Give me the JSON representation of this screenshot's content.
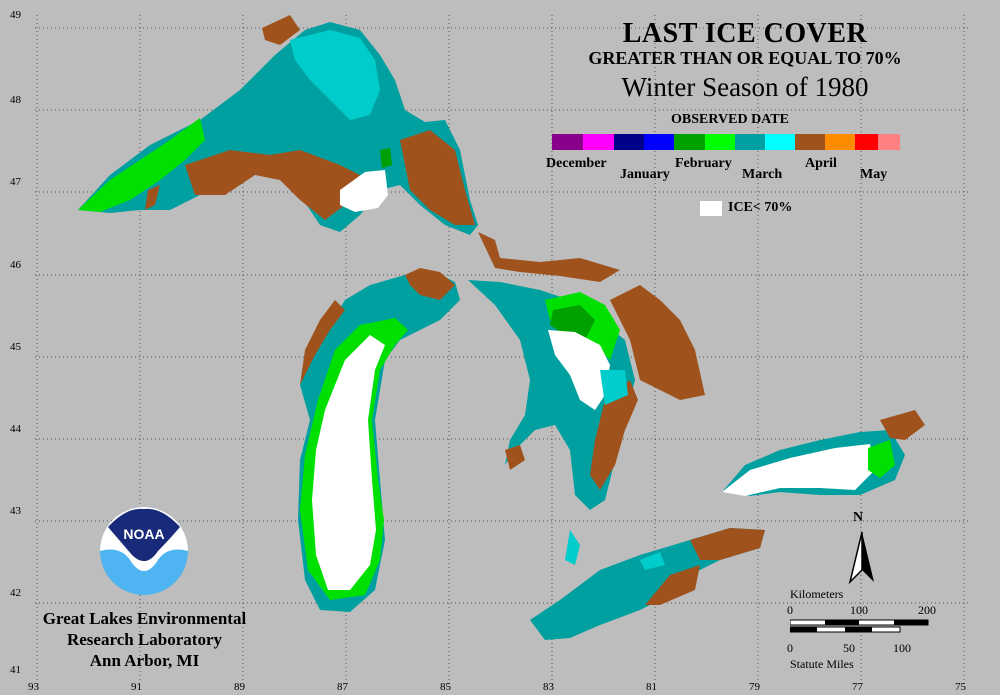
{
  "title": {
    "line1": "LAST ICE COVER",
    "line2": "GREATER THAN OR EQUAL TO 70%",
    "line3": "Winter Season of 1980"
  },
  "legend": {
    "title": "OBSERVED DATE",
    "months": [
      {
        "label": "December",
        "colors": [
          "#8b008b",
          "#ff00ff"
        ]
      },
      {
        "label": "January",
        "colors": [
          "#00008b",
          "#0000ff"
        ]
      },
      {
        "label": "February",
        "colors": [
          "#00a000",
          "#00ff00"
        ]
      },
      {
        "label": "March",
        "colors": [
          "#00a0a0",
          "#00ffff"
        ]
      },
      {
        "label": "April",
        "colors": [
          "#a0521d",
          "#ff8c00"
        ]
      },
      {
        "label": "May",
        "colors": [
          "#ff0000",
          "#ff8080"
        ]
      }
    ],
    "ice_label": "ICE< 70%"
  },
  "axes": {
    "lat_ticks": [
      "49",
      "48",
      "47",
      "46",
      "45",
      "44",
      "43",
      "42",
      "41"
    ],
    "lon_ticks": [
      "93",
      "91",
      "89",
      "87",
      "85",
      "83",
      "81",
      "79",
      "77",
      "75"
    ]
  },
  "north_label": "N",
  "scale_bar": {
    "km_title": "Kilometers",
    "km_ticks": [
      "0",
      "100",
      "200"
    ],
    "mi_ticks": [
      "0",
      "50",
      "100"
    ],
    "mi_title": "Statute Miles"
  },
  "noaa_label": "NOAA",
  "credit": {
    "line1": "Great Lakes Environmental",
    "line2": "Research Laboratory",
    "line3": "Ann Arbor, MI"
  },
  "colors": {
    "background": "#bdbdbd",
    "ice_lt_70": "#ffffff",
    "march_dark": "#00a0a0",
    "march_light": "#00cccc",
    "february": "#00e000",
    "april": "#a0521d"
  }
}
